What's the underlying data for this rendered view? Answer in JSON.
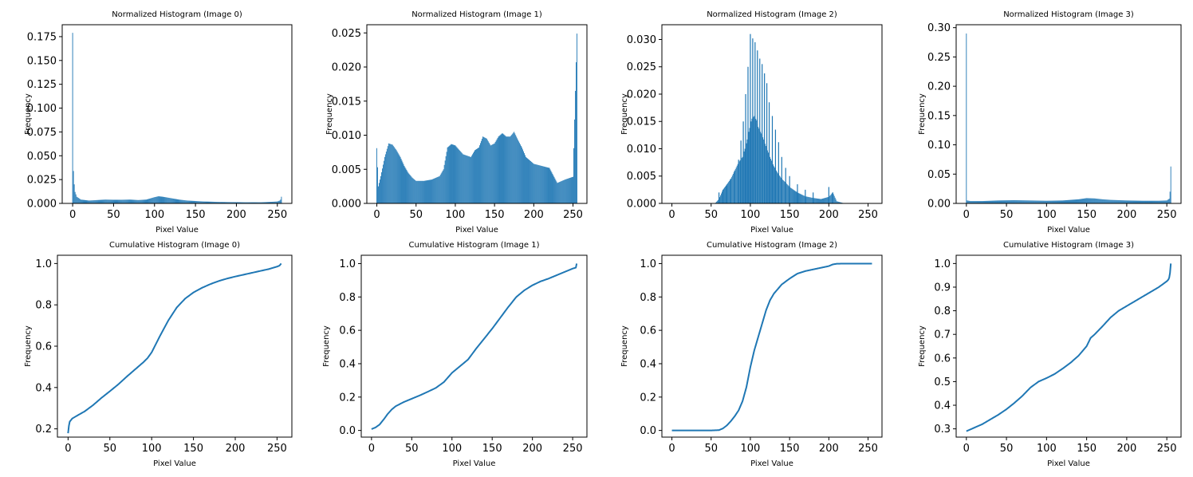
{
  "figure": {
    "colors": {
      "series": "#1f77b4",
      "axes": "#000000",
      "background": "#ffffff"
    }
  },
  "chart_data": [
    {
      "type": "bar",
      "title": "Normalized Histogram (Image 0)",
      "xlabel": "Pixel Value",
      "ylabel": "Frequency",
      "xlim": [
        -12.75,
        267.75
      ],
      "ylim": [
        0,
        0.1875
      ],
      "xticks": [
        0,
        50,
        100,
        150,
        200,
        250
      ],
      "xtick_labels": [
        "0",
        "50",
        "100",
        "150",
        "200",
        "250"
      ],
      "yticks": [
        0.0,
        0.025,
        0.05,
        0.075,
        0.1,
        0.125,
        0.15,
        0.175
      ],
      "ytick_labels": [
        "0.000",
        "0.025",
        "0.050",
        "0.075",
        "0.100",
        "0.125",
        "0.150",
        "0.175"
      ],
      "x": [
        0,
        1,
        2,
        3,
        5,
        10,
        20,
        30,
        40,
        50,
        60,
        70,
        80,
        90,
        100,
        105,
        110,
        120,
        130,
        140,
        150,
        160,
        170,
        180,
        190,
        200,
        210,
        220,
        230,
        240,
        250,
        253,
        254,
        255
      ],
      "values": [
        0.179,
        0.034,
        0.02,
        0.012,
        0.007,
        0.004,
        0.003,
        0.0035,
        0.004,
        0.0038,
        0.0038,
        0.004,
        0.0035,
        0.004,
        0.0065,
        0.0075,
        0.007,
        0.0055,
        0.004,
        0.003,
        0.0025,
        0.002,
        0.0018,
        0.0015,
        0.0014,
        0.0013,
        0.0012,
        0.0012,
        0.0012,
        0.0015,
        0.002,
        0.003,
        0.004,
        0.007
      ]
    },
    {
      "type": "bar",
      "title": "Normalized Histogram (Image 1)",
      "xlabel": "Pixel Value",
      "ylabel": "Frequency",
      "xlim": [
        -12.75,
        267.75
      ],
      "ylim": [
        0,
        0.0262
      ],
      "xticks": [
        0,
        50,
        100,
        150,
        200,
        250
      ],
      "xtick_labels": [
        "0",
        "50",
        "100",
        "150",
        "200",
        "250"
      ],
      "yticks": [
        0.0,
        0.005,
        0.01,
        0.015,
        0.02,
        0.025
      ],
      "ytick_labels": [
        "0.000",
        "0.005",
        "0.010",
        "0.015",
        "0.020",
        "0.025"
      ],
      "x": [
        0,
        2,
        5,
        10,
        15,
        20,
        25,
        30,
        35,
        40,
        45,
        50,
        60,
        70,
        80,
        85,
        90,
        95,
        100,
        110,
        120,
        125,
        130,
        135,
        140,
        145,
        150,
        155,
        160,
        165,
        170,
        175,
        180,
        185,
        190,
        200,
        210,
        220,
        230,
        240,
        250,
        255
      ],
      "values": [
        0.0081,
        0.0025,
        0.004,
        0.0068,
        0.0088,
        0.0086,
        0.0078,
        0.0068,
        0.0055,
        0.0045,
        0.0038,
        0.0033,
        0.0033,
        0.0035,
        0.004,
        0.005,
        0.0082,
        0.0087,
        0.0085,
        0.0072,
        0.0068,
        0.0078,
        0.0082,
        0.0098,
        0.0095,
        0.0085,
        0.0088,
        0.0098,
        0.0103,
        0.0098,
        0.0098,
        0.0105,
        0.0093,
        0.0082,
        0.0068,
        0.0058,
        0.0055,
        0.0052,
        0.003,
        0.0035,
        0.0039,
        0.0249
      ]
    },
    {
      "type": "bar",
      "title": "Normalized Histogram (Image 2)",
      "xlabel": "Pixel Value",
      "ylabel": "Frequency",
      "xlim": [
        -12.75,
        267.75
      ],
      "ylim": [
        0,
        0.0327
      ],
      "xticks": [
        0,
        50,
        100,
        150,
        200,
        250
      ],
      "xtick_labels": [
        "0",
        "50",
        "100",
        "150",
        "200",
        "250"
      ],
      "yticks": [
        0.0,
        0.005,
        0.01,
        0.015,
        0.02,
        0.025,
        0.03
      ],
      "ytick_labels": [
        "0.000",
        "0.005",
        "0.010",
        "0.015",
        "0.020",
        "0.025",
        "0.030"
      ],
      "x": [
        0,
        50,
        55,
        60,
        65,
        70,
        75,
        80,
        85,
        90,
        95,
        100,
        102,
        105,
        108,
        110,
        115,
        120,
        125,
        130,
        135,
        140,
        145,
        150,
        155,
        160,
        170,
        180,
        190,
        200,
        205,
        210,
        215,
        220,
        255
      ],
      "values": [
        0.0,
        0.0,
        0.0,
        0.0008,
        0.0025,
        0.0035,
        0.0045,
        0.006,
        0.0075,
        0.0085,
        0.011,
        0.0145,
        0.0155,
        0.016,
        0.0152,
        0.014,
        0.0125,
        0.0105,
        0.0085,
        0.0068,
        0.0055,
        0.0045,
        0.0038,
        0.003,
        0.0025,
        0.002,
        0.0013,
        0.001,
        0.0008,
        0.0012,
        0.002,
        0.0004,
        0.0002,
        0.0,
        0.0
      ],
      "spikes_x": [
        60,
        65,
        70,
        75,
        80,
        85,
        88,
        91,
        94,
        97,
        100,
        103,
        106,
        109,
        112,
        115,
        118,
        121,
        124,
        128,
        132,
        136,
        140,
        145,
        150,
        160,
        170,
        180,
        200,
        205
      ],
      "spikes_values": [
        0.002,
        0.0025,
        0.0032,
        0.0045,
        0.006,
        0.008,
        0.0115,
        0.015,
        0.02,
        0.025,
        0.031,
        0.0302,
        0.0295,
        0.028,
        0.0265,
        0.0255,
        0.0238,
        0.022,
        0.0185,
        0.016,
        0.0135,
        0.0112,
        0.0085,
        0.0065,
        0.005,
        0.0035,
        0.0025,
        0.002,
        0.003,
        0.002
      ]
    },
    {
      "type": "bar",
      "title": "Normalized Histogram (Image 3)",
      "xlabel": "Pixel Value",
      "ylabel": "Frequency",
      "xlim": [
        -12.75,
        267.75
      ],
      "ylim": [
        0,
        0.305
      ],
      "xticks": [
        0,
        50,
        100,
        150,
        200,
        250
      ],
      "xtick_labels": [
        "0",
        "50",
        "100",
        "150",
        "200",
        "250"
      ],
      "yticks": [
        0.0,
        0.05,
        0.1,
        0.15,
        0.2,
        0.25,
        0.3
      ],
      "ytick_labels": [
        "0.00",
        "0.05",
        "0.10",
        "0.15",
        "0.20",
        "0.25",
        "0.30"
      ],
      "x": [
        0,
        1,
        5,
        20,
        40,
        60,
        80,
        100,
        120,
        140,
        150,
        160,
        170,
        180,
        200,
        220,
        240,
        250,
        253,
        254,
        255
      ],
      "values": [
        0.29,
        0.005,
        0.004,
        0.004,
        0.005,
        0.0055,
        0.005,
        0.0045,
        0.005,
        0.007,
        0.009,
        0.0085,
        0.007,
        0.006,
        0.005,
        0.0045,
        0.0045,
        0.005,
        0.008,
        0.02,
        0.063
      ]
    },
    {
      "type": "line",
      "title": "Cumulative Histogram (Image 0)",
      "xlabel": "Pixel Value",
      "ylabel": "Frequency",
      "xlim": [
        -12.75,
        267.75
      ],
      "ylim": [
        0.16,
        1.04
      ],
      "xticks": [
        0,
        50,
        100,
        150,
        200,
        250
      ],
      "xtick_labels": [
        "0",
        "50",
        "100",
        "150",
        "200",
        "250"
      ],
      "yticks": [
        0.2,
        0.4,
        0.6,
        0.8,
        1.0
      ],
      "ytick_labels": [
        "0.2",
        "0.4",
        "0.6",
        "0.8",
        "1.0"
      ],
      "x": [
        0,
        1,
        2,
        5,
        10,
        20,
        30,
        40,
        50,
        60,
        70,
        80,
        90,
        95,
        100,
        105,
        110,
        120,
        130,
        140,
        150,
        160,
        170,
        180,
        190,
        200,
        210,
        220,
        230,
        240,
        250,
        253,
        255
      ],
      "values": [
        0.179,
        0.215,
        0.235,
        0.25,
        0.262,
        0.285,
        0.315,
        0.35,
        0.382,
        0.415,
        0.452,
        0.487,
        0.522,
        0.542,
        0.57,
        0.61,
        0.65,
        0.725,
        0.787,
        0.83,
        0.86,
        0.882,
        0.9,
        0.915,
        0.927,
        0.937,
        0.946,
        0.955,
        0.964,
        0.973,
        0.985,
        0.99,
        1.0
      ]
    },
    {
      "type": "line",
      "title": "Cumulative Histogram (Image 1)",
      "xlabel": "Pixel Value",
      "ylabel": "Frequency",
      "xlim": [
        -12.75,
        267.75
      ],
      "ylim": [
        -0.04,
        1.05
      ],
      "xticks": [
        0,
        50,
        100,
        150,
        200,
        250
      ],
      "xtick_labels": [
        "0",
        "50",
        "100",
        "150",
        "200",
        "250"
      ],
      "yticks": [
        0.0,
        0.2,
        0.4,
        0.6,
        0.8,
        1.0
      ],
      "ytick_labels": [
        "0.0",
        "0.2",
        "0.4",
        "0.6",
        "0.8",
        "1.0"
      ],
      "x": [
        0,
        5,
        10,
        15,
        20,
        25,
        30,
        40,
        50,
        60,
        70,
        80,
        90,
        100,
        110,
        120,
        130,
        140,
        150,
        160,
        170,
        180,
        190,
        200,
        210,
        220,
        230,
        240,
        250,
        254,
        255
      ],
      "values": [
        0.008,
        0.018,
        0.035,
        0.065,
        0.098,
        0.125,
        0.145,
        0.17,
        0.19,
        0.21,
        0.232,
        0.255,
        0.29,
        0.345,
        0.385,
        0.425,
        0.49,
        0.55,
        0.61,
        0.675,
        0.74,
        0.8,
        0.84,
        0.87,
        0.893,
        0.91,
        0.93,
        0.95,
        0.97,
        0.976,
        1.0
      ]
    },
    {
      "type": "line",
      "title": "Cumulative Histogram (Image 2)",
      "xlabel": "Pixel Value",
      "ylabel": "Frequency",
      "xlim": [
        -12.75,
        267.75
      ],
      "ylim": [
        -0.04,
        1.05
      ],
      "xticks": [
        0,
        50,
        100,
        150,
        200,
        250
      ],
      "xtick_labels": [
        "0",
        "50",
        "100",
        "150",
        "200",
        "250"
      ],
      "yticks": [
        0.0,
        0.2,
        0.4,
        0.6,
        0.8,
        1.0
      ],
      "ytick_labels": [
        "0.0",
        "0.2",
        "0.4",
        "0.6",
        "0.8",
        "1.0"
      ],
      "x": [
        0,
        50,
        60,
        65,
        70,
        75,
        80,
        85,
        90,
        95,
        100,
        105,
        110,
        115,
        120,
        125,
        130,
        140,
        150,
        160,
        170,
        180,
        190,
        200,
        205,
        210,
        220,
        255
      ],
      "values": [
        0.0,
        0.0,
        0.002,
        0.012,
        0.03,
        0.055,
        0.085,
        0.12,
        0.175,
        0.26,
        0.38,
        0.48,
        0.56,
        0.64,
        0.72,
        0.78,
        0.82,
        0.875,
        0.91,
        0.94,
        0.955,
        0.965,
        0.975,
        0.985,
        0.995,
        0.999,
        1.0,
        1.0
      ]
    },
    {
      "type": "line",
      "title": "Cumulative Histogram (Image 3)",
      "xlabel": "Pixel Value",
      "ylabel": "Frequency",
      "xlim": [
        -12.75,
        267.75
      ],
      "ylim": [
        0.265,
        1.035
      ],
      "xticks": [
        0,
        50,
        100,
        150,
        200,
        250
      ],
      "xtick_labels": [
        "0",
        "50",
        "100",
        "150",
        "200",
        "250"
      ],
      "yticks": [
        0.3,
        0.4,
        0.5,
        0.6,
        0.7,
        0.8,
        0.9,
        1.0
      ],
      "ytick_labels": [
        "0.3",
        "0.4",
        "0.5",
        "0.6",
        "0.7",
        "0.8",
        "0.9",
        "1.0"
      ],
      "x": [
        0,
        10,
        20,
        30,
        40,
        50,
        60,
        70,
        80,
        90,
        100,
        110,
        120,
        130,
        140,
        150,
        155,
        160,
        170,
        180,
        190,
        200,
        210,
        220,
        230,
        240,
        250,
        252,
        253,
        254,
        255
      ],
      "values": [
        0.29,
        0.305,
        0.32,
        0.34,
        0.36,
        0.383,
        0.41,
        0.44,
        0.475,
        0.5,
        0.515,
        0.532,
        0.555,
        0.58,
        0.61,
        0.65,
        0.685,
        0.7,
        0.735,
        0.772,
        0.8,
        0.82,
        0.84,
        0.86,
        0.88,
        0.9,
        0.925,
        0.932,
        0.94,
        0.96,
        1.0
      ]
    }
  ]
}
